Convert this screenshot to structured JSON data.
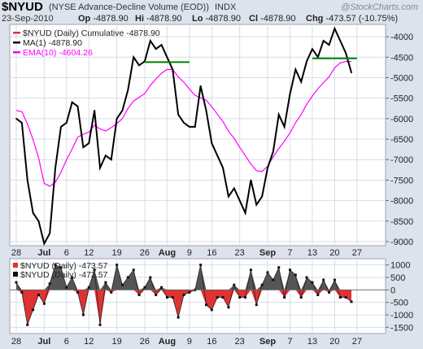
{
  "header": {
    "symbol": "$NYUD",
    "description": "(NYSE Advance-Decline Volume (EOD))",
    "exchange": "INDX",
    "watermark": "@StockCharts.com",
    "date": "23-Sep-2010",
    "quote": [
      {
        "label": "Op",
        "value": "-4878.90"
      },
      {
        "label": "Hi",
        "value": "-4878.90"
      },
      {
        "label": "Lo",
        "value": "-4878.90"
      },
      {
        "label": "Cl",
        "value": "-4878.90"
      },
      {
        "label": "Chg",
        "value": "-473.57 (-10.75%)"
      }
    ]
  },
  "colors": {
    "price": "#000000",
    "ema": "#ff00ff",
    "bull": "#555555",
    "bear": "#e03232",
    "support": "#008000",
    "panel": "#ffffff",
    "grid": "#d7dde6",
    "background": "#dde3ec"
  },
  "chart_data": [
    {
      "type": "line",
      "x_tick_labels": [
        "28",
        "Jul",
        "6",
        "12",
        "19",
        "26",
        "Aug",
        "9",
        "16",
        "23",
        "Sep",
        "7",
        "13",
        "20",
        "27"
      ],
      "legend": [
        "$NYUD (Daily) Cumulative -4878.90",
        "MA(1) -4878.90",
        "EMA(10) -4604.26"
      ],
      "yticks": [
        -4000,
        -4500,
        -5000,
        -5500,
        -6000,
        -6500,
        -7000,
        -7500,
        -8000,
        -8500,
        -9000
      ],
      "ylim": [
        -9100,
        -3700
      ],
      "series": [
        {
          "name": "MA(1)",
          "values": [
            -6000,
            -6100,
            -7500,
            -8300,
            -8500,
            -9050,
            -8800,
            -7200,
            -6200,
            -6100,
            -5600,
            -5700,
            -6700,
            -6600,
            -5800,
            -7200,
            -6900,
            -7000,
            -6000,
            -5800,
            -5300,
            -4500,
            -4700,
            -4600,
            -4100,
            -4300,
            -4200,
            -4500,
            -4800,
            -5900,
            -6100,
            -6200,
            -6200,
            -5200,
            -5800,
            -6600,
            -6900,
            -7200,
            -7900,
            -7700,
            -8000,
            -8300,
            -7500,
            -8100,
            -7900,
            -7200,
            -6800,
            -5900,
            -6200,
            -5400,
            -4800,
            -5100,
            -4600,
            -4300,
            -4500,
            -4100,
            -4200,
            -3800,
            -4100,
            -4400,
            -4878.9
          ]
        },
        {
          "name": "EMA(10)",
          "values": [
            -5800,
            -5830,
            -6130,
            -6510,
            -6960,
            -7580,
            -7650,
            -7550,
            -7310,
            -7000,
            -6740,
            -6450,
            -6380,
            -6330,
            -6160,
            -6250,
            -6300,
            -6220,
            -6120,
            -6000,
            -5750,
            -5570,
            -5480,
            -5390,
            -5190,
            -5030,
            -4890,
            -4800,
            -4800,
            -4980,
            -5110,
            -5280,
            -5430,
            -5490,
            -5550,
            -5710,
            -5890,
            -6070,
            -6310,
            -6480,
            -6700,
            -6900,
            -7110,
            -7270,
            -7290,
            -7160,
            -6930,
            -6730,
            -6550,
            -6350,
            -6100,
            -5900,
            -5650,
            -5450,
            -5270,
            -5120,
            -4980,
            -4760,
            -4640,
            -4604.26,
            -4604.26
          ]
        },
        {
          "name": "support-left",
          "values": [
            -4620,
            -4620
          ]
        },
        {
          "name": "support-right",
          "values": [
            -4530,
            -4530
          ]
        }
      ]
    },
    {
      "type": "bar",
      "legend": [
        "$NYUD (Daily) -473.57",
        "$NYUD (Daily) -473.57"
      ],
      "yticks": [
        1000,
        500,
        0,
        -500,
        -1000,
        -1500
      ],
      "ylim": [
        -1750,
        1250
      ],
      "series": [
        {
          "name": "$NYUD (Daily)",
          "values": [
            300,
            -100,
            -1400,
            -800,
            -200,
            -550,
            250,
            1000,
            900,
            100,
            500,
            -100,
            -1000,
            100,
            800,
            -1400,
            300,
            -100,
            1000,
            200,
            500,
            800,
            -200,
            100,
            500,
            -200,
            100,
            -300,
            -300,
            -1100,
            -200,
            -100,
            0,
            1000,
            -600,
            -800,
            -300,
            -300,
            -700,
            200,
            -300,
            -300,
            800,
            -600,
            200,
            700,
            400,
            900,
            -300,
            800,
            600,
            -300,
            500,
            300,
            -200,
            400,
            -100,
            400,
            -300,
            -300,
            -473.57
          ]
        }
      ]
    }
  ]
}
